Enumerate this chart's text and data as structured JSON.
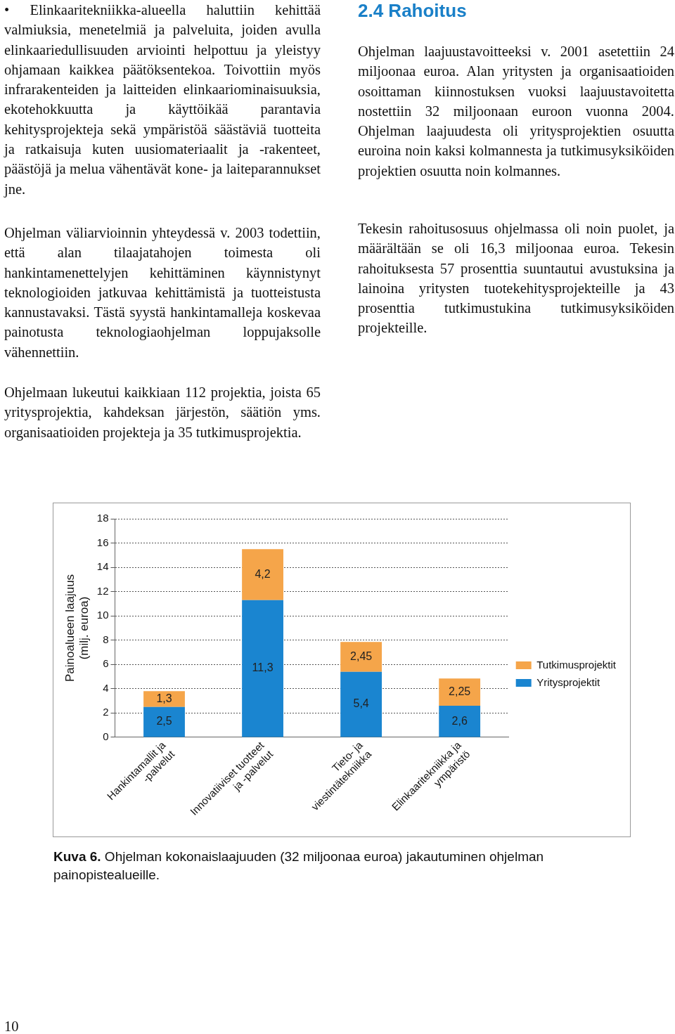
{
  "chart_data": {
    "type": "bar",
    "stacked": true,
    "ylabel": "Painoalueen laajuus\n(milj. euroa)",
    "categories": [
      "Hankintamallit ja\n-palvelut",
      "Innovatiiviset tuotteet\nja -palvelut",
      "Tieto- ja\nviestintätekniikka",
      "Elinkaaritekniikka ja\nympäristö"
    ],
    "series": [
      {
        "name": "Yritysprojektit",
        "color": "#1a85d0",
        "values": [
          2.5,
          11.3,
          5.4,
          2.6
        ],
        "value_labels": [
          "2,5",
          "11,3",
          "5,4",
          "2,6"
        ]
      },
      {
        "name": "Tutkimusprojektit",
        "color": "#f5a54a",
        "values": [
          1.3,
          4.2,
          2.45,
          2.25
        ],
        "value_labels": [
          "1,3",
          "4,2",
          "2,45",
          "2,25"
        ]
      }
    ],
    "ylim": [
      0,
      18
    ],
    "yticks": [
      0,
      2,
      4,
      6,
      8,
      10,
      12,
      14,
      16,
      18
    ],
    "grid": "y",
    "legend": "right",
    "annotations": [
      "• Elinkaaritekniikka-alueella haluttiin kehittää valmiuksia, menetelmiä ja palveluita, joiden avulla elinkaariedullisuuden arviointi helpottuu ja yleistyy ohjamaan kaikkea päätöksentekoa. Toivottiin myös infrarakenteiden ja laitteiden elinkaariominaisuuksia, ekotehokkuutta ja käyttöikää parantavia kehitysprojekteja sekä ympäristöä säästäviä tuotteita ja ratkaisuja kuten uusiomateriaalit ja -rakenteet, päästöjä ja melua vähentävät kone- ja laiteparannukset jne.",
      "Ohjelman väliarvioinnin yhteydessä v. 2003 todettiin, että alan tilaajatahojen toimesta oli hankintamenettelyjen kehittäminen käynnistynyt teknologioiden jatkuvaa kehittämistä ja tuotteistusta kannustavaksi. Tästä syystä hankintamalleja koskevaa painotusta teknologiaohjelman loppujaksolle vähennettiin.",
      "Ohjelmaan lukeutui kaikkiaan 112 projektia, joista 65 yritysprojektia, kahdeksan järjestön, säätiön yms. organisaatioiden projekteja ja 35 tutkimusprojektia.",
      "2.4 Rahoitus",
      "Ohjelman laajuustavoitteeksi v. 2001 asetettiin 24 miljoonaa euroa. Alan yritysten ja organisaatioiden osoittaman kiinnostuksen vuoksi laajuustavoitetta nostettiin 32 miljoonaan euroon vuonna 2004. Ohjelman laajuudesta oli yritysprojektien osuutta euroina noin kaksi kolmannesta ja tutkimusyksiköiden projektien osuutta noin kolmannes.",
      "Tekesin rahoitusosuus ohjelmassa oli noin puolet, ja määrältään se oli 16,3 miljoonaa euroa. Tekesin rahoituksesta 57 prosenttia suuntautui avustuksina ja lainoina yritysten tuotekehitysprojekteille ja 43 prosenttia tutkimustukina tutkimusyksiköiden projekteille.",
      "Kuva 6. Ohjelman kokonaislaajuuden (32 miljoonaa euroa) jakautuminen ohjelman painopistealueille.",
      "10"
    ]
  }
}
